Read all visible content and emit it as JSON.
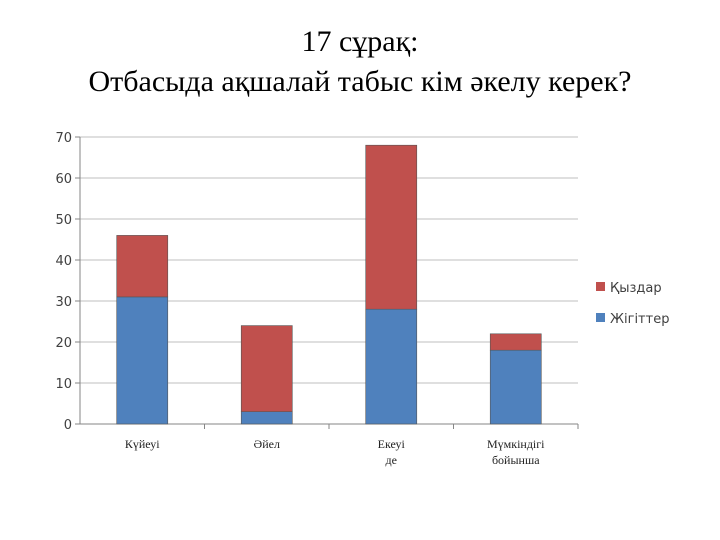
{
  "title": {
    "line1": "17 сұрақ:",
    "line2": "Отбасыда ақшалай табыс кім әкелу керек?"
  },
  "chart_data": {
    "type": "bar",
    "stacked": true,
    "categories": [
      "Күйеуі",
      "Әйел",
      "Екеуі де",
      "Мүмкіндігі бойынша"
    ],
    "series": [
      {
        "name": "Жігіттер",
        "color": "#4f81bd",
        "values": [
          31,
          3,
          28,
          18
        ]
      },
      {
        "name": "Қыздар",
        "color": "#c0504d",
        "values": [
          15,
          21,
          40,
          4
        ]
      }
    ],
    "ylim": [
      0,
      70
    ],
    "yticks": [
      0,
      10,
      20,
      30,
      40,
      50,
      60,
      70
    ],
    "grid": true,
    "legend": "right",
    "legend_order": [
      "Қыздар",
      "Жігіттер"
    ],
    "xlabel": "",
    "ylabel": ""
  }
}
